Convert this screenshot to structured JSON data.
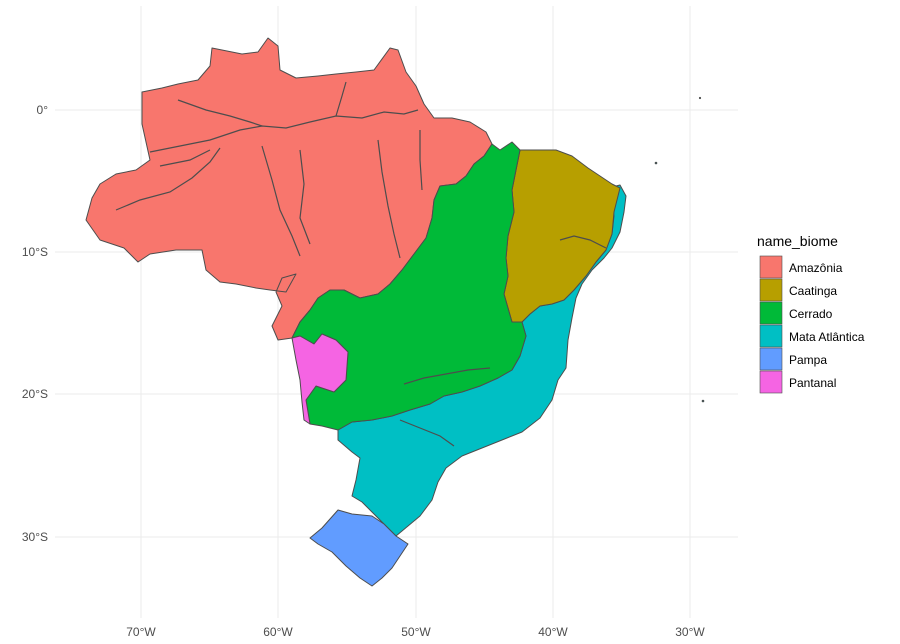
{
  "chart_data": {
    "type": "map",
    "legend_title": "name_biome",
    "legend_position": "right",
    "grid": true,
    "x_ticks": [
      "70°W",
      "60°W",
      "50°W",
      "40°W",
      "30°W"
    ],
    "y_ticks": [
      "0°",
      "10°S",
      "20°S",
      "30°S"
    ],
    "regions": [
      {
        "name": "Amazônia",
        "color": "#F8766D"
      },
      {
        "name": "Caatinga",
        "color": "#B79F00"
      },
      {
        "name": "Cerrado",
        "color": "#00BA38"
      },
      {
        "name": "Mata Atlântica",
        "color": "#00BFC4"
      },
      {
        "name": "Pampa",
        "color": "#619CFF"
      },
      {
        "name": "Pantanal",
        "color": "#F564E3"
      }
    ]
  }
}
